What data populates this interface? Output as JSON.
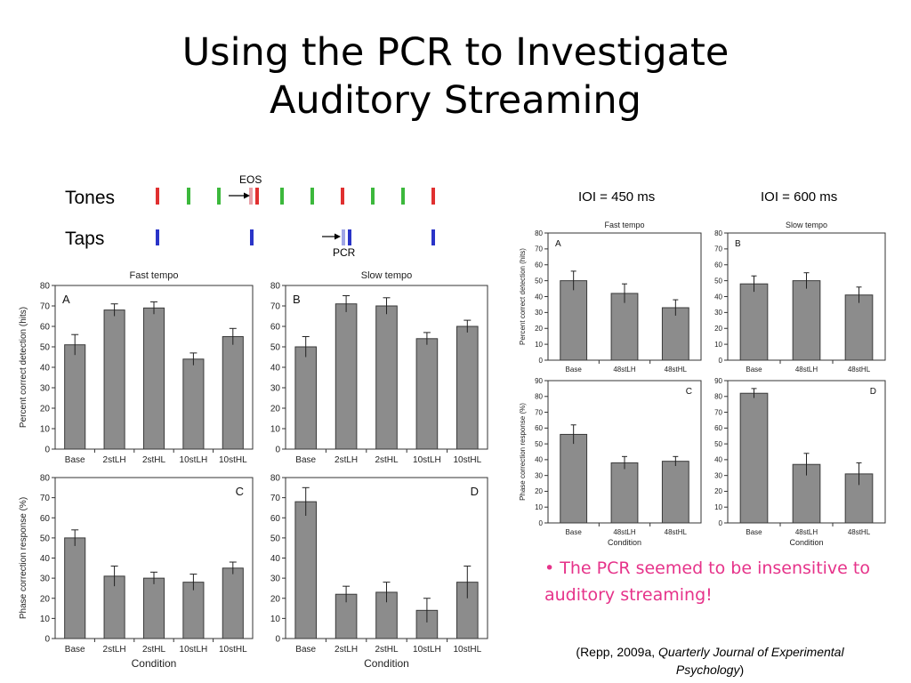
{
  "slide": {
    "title_line1": "Using the PCR to Investigate",
    "title_line2": "Auditory Streaming"
  },
  "timing_diagram": {
    "tones_label": "Tones",
    "taps_label": "Taps",
    "eos_label": "EOS",
    "pcr_label": "PCR",
    "colors": {
      "red": "#e03030",
      "green": "#3cb83c",
      "blue": "#2a34c8",
      "light_red": "#e8a0a8",
      "light_blue": "#a0a6e6"
    }
  },
  "ioi_labels": {
    "left": "IOI = 450 ms",
    "right": "IOI = 600 ms"
  },
  "bullet": "• The PCR seemed to be insensitive to auditory streaming!",
  "citation": {
    "pre": "(Repp, 2009a, ",
    "journal": "Quarterly Journal of Experimental Psychology",
    "post": ")"
  },
  "chart_data": [
    {
      "type": "bar",
      "panel": "A",
      "title": "Fast tempo",
      "ylabel": "Percent correct detection (hits)",
      "xlabel": "",
      "ylim": [
        0,
        80
      ],
      "yticks": [
        0,
        10,
        20,
        30,
        40,
        50,
        60,
        70,
        80
      ],
      "categories": [
        "Base",
        "2stLH",
        "2stHL",
        "10stLH",
        "10stHL"
      ],
      "values": [
        51,
        68,
        69,
        44,
        55
      ],
      "errors": [
        5,
        3,
        3,
        3,
        4
      ]
    },
    {
      "type": "bar",
      "panel": "B",
      "title": "Slow tempo",
      "ylabel": "",
      "xlabel": "",
      "ylim": [
        0,
        80
      ],
      "yticks": [
        0,
        10,
        20,
        30,
        40,
        50,
        60,
        70,
        80
      ],
      "categories": [
        "Base",
        "2stLH",
        "2stHL",
        "10stLH",
        "10stHL"
      ],
      "values": [
        50,
        71,
        70,
        54,
        60
      ],
      "errors": [
        5,
        4,
        4,
        3,
        3
      ]
    },
    {
      "type": "bar",
      "panel": "C",
      "title": "",
      "ylabel": "Phase correction response (%)",
      "xlabel": "Condition",
      "ylim": [
        0,
        80
      ],
      "yticks": [
        0,
        10,
        20,
        30,
        40,
        50,
        60,
        70,
        80
      ],
      "categories": [
        "Base",
        "2stLH",
        "2stHL",
        "10stLH",
        "10stHL"
      ],
      "values": [
        50,
        31,
        30,
        28,
        35
      ],
      "errors": [
        4,
        5,
        3,
        4,
        3
      ]
    },
    {
      "type": "bar",
      "panel": "D",
      "title": "",
      "ylabel": "",
      "xlabel": "Condition",
      "ylim": [
        0,
        80
      ],
      "yticks": [
        0,
        10,
        20,
        30,
        40,
        50,
        60,
        70,
        80
      ],
      "categories": [
        "Base",
        "2stLH",
        "2stHL",
        "10stLH",
        "10stHL"
      ],
      "values": [
        68,
        22,
        23,
        14,
        28
      ],
      "errors": [
        7,
        4,
        5,
        6,
        8
      ]
    },
    {
      "type": "bar",
      "panel": "A",
      "title": "Fast tempo",
      "ylabel": "Percent correct detection (hits)",
      "xlabel": "",
      "ylim": [
        0,
        80
      ],
      "yticks": [
        0,
        10,
        20,
        30,
        40,
        50,
        60,
        70,
        80
      ],
      "categories": [
        "Base",
        "48stLH",
        "48stHL"
      ],
      "values": [
        50,
        42,
        33
      ],
      "errors": [
        6,
        6,
        5
      ]
    },
    {
      "type": "bar",
      "panel": "B",
      "title": "Slow tempo",
      "ylabel": "",
      "xlabel": "",
      "ylim": [
        0,
        80
      ],
      "yticks": [
        0,
        10,
        20,
        30,
        40,
        50,
        60,
        70,
        80
      ],
      "categories": [
        "Base",
        "48stLH",
        "48stHL"
      ],
      "values": [
        48,
        50,
        41
      ],
      "errors": [
        5,
        5,
        5
      ]
    },
    {
      "type": "bar",
      "panel": "C",
      "title": "",
      "ylabel": "Phase correction response (%)",
      "xlabel": "Condition",
      "ylim": [
        0,
        90
      ],
      "yticks": [
        0,
        10,
        20,
        30,
        40,
        50,
        60,
        70,
        80,
        90
      ],
      "categories": [
        "Base",
        "48stLH",
        "48stHL"
      ],
      "values": [
        56,
        38,
        39
      ],
      "errors": [
        6,
        4,
        3
      ]
    },
    {
      "type": "bar",
      "panel": "D",
      "title": "",
      "ylabel": "",
      "xlabel": "Condition",
      "ylim": [
        0,
        90
      ],
      "yticks": [
        0,
        10,
        20,
        30,
        40,
        50,
        60,
        70,
        80,
        90
      ],
      "categories": [
        "Base",
        "48stLH",
        "48stHL"
      ],
      "values": [
        82,
        37,
        31
      ],
      "errors": [
        3,
        7,
        7
      ]
    }
  ]
}
